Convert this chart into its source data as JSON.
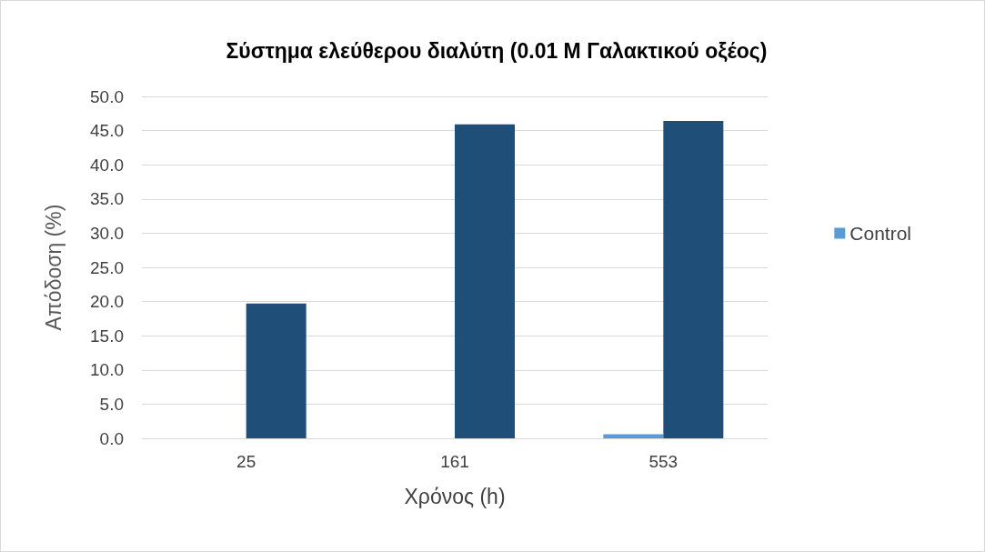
{
  "chart_data": {
    "type": "bar",
    "title": "Σύστημα ελεύθερου διαλύτη (0.01 M Γαλακτικού οξέος)",
    "xlabel": "Χρόνος (h)",
    "ylabel": "Απόδοση (%)",
    "categories": [
      "25",
      "161",
      "553"
    ],
    "series": [
      {
        "name": "Control",
        "color": "#5b9bd5",
        "values": [
          0,
          0,
          0.6
        ]
      },
      {
        "color": "#1f4e79",
        "values": [
          19.7,
          45.9,
          46.4
        ]
      }
    ],
    "ylim": [
      0,
      50
    ],
    "yticks": [
      {
        "value": 0,
        "label": "0.0"
      },
      {
        "value": 5,
        "label": "5.0"
      },
      {
        "value": 10,
        "label": "10.0"
      },
      {
        "value": 15,
        "label": "15.0"
      },
      {
        "value": 20,
        "label": "20.0"
      },
      {
        "value": 25,
        "label": "25.0"
      },
      {
        "value": 30,
        "label": "30.0"
      },
      {
        "value": 35,
        "label": "35.0"
      },
      {
        "value": 40,
        "label": "40.0"
      },
      {
        "value": 45,
        "label": "45.0"
      },
      {
        "value": 50,
        "label": "50.0"
      }
    ],
    "grid": "y",
    "legend": "right"
  }
}
